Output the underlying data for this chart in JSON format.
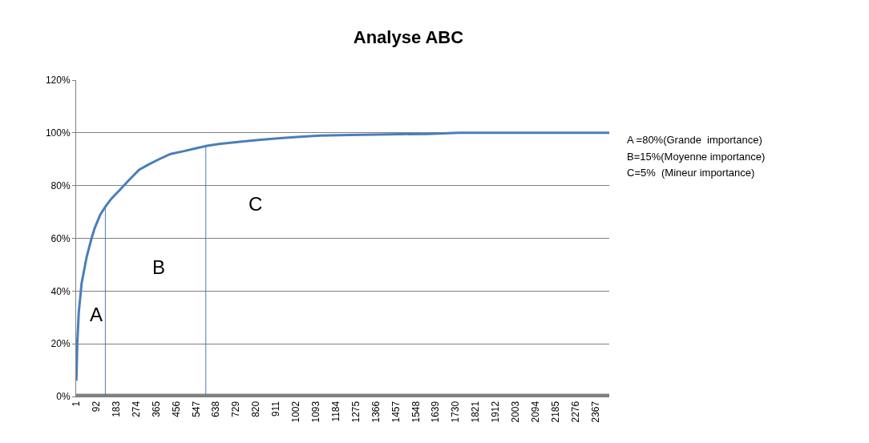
{
  "chart_data": {
    "type": "line",
    "title": "Analyse ABC",
    "series": [
      {
        "color": "#4a7ebb",
        "x": [
          1,
          5,
          12,
          25,
          48,
          70,
          85,
          110,
          133,
          160,
          195,
          240,
          287,
          330,
          378,
          430,
          488,
          540,
          591,
          650,
          745,
          830,
          928,
          1020,
          1111,
          1250,
          1477,
          1600,
          1745,
          2000,
          2200,
          2430
        ],
        "values": [
          6,
          20,
          32,
          43,
          53,
          60,
          64,
          69,
          72,
          75,
          78,
          82,
          86,
          88,
          90,
          92,
          93,
          94,
          95,
          95.8,
          96.6,
          97.3,
          98,
          98.5,
          99,
          99.2,
          99.5,
          99.6,
          100,
          100,
          100,
          100
        ]
      },
      {
        "color": "#4a7ebb",
        "x": [
          133,
          133
        ],
        "values": [
          0,
          72
        ]
      },
      {
        "color": "#4a7ebb",
        "x": [
          591,
          591
        ],
        "values": [
          0,
          95
        ]
      }
    ],
    "xlim": [
      0,
      2430
    ],
    "xticks": [
      1,
      92,
      183,
      274,
      365,
      456,
      547,
      638,
      729,
      820,
      911,
      1002,
      1093,
      1184,
      1275,
      1366,
      1457,
      1548,
      1639,
      1730,
      1821,
      1912,
      2003,
      2094,
      2185,
      2276,
      2367
    ],
    "ylim": [
      0,
      120
    ],
    "yticks": [
      {
        "value": 0,
        "label": "0%"
      },
      {
        "value": 20,
        "label": "20%"
      },
      {
        "value": 40,
        "label": "40%"
      },
      {
        "value": 60,
        "label": "60%"
      },
      {
        "value": 80,
        "label": "80%"
      },
      {
        "value": 100,
        "label": "100%"
      },
      {
        "value": 120,
        "label": "120%"
      }
    ],
    "grid": "y",
    "marker": "none",
    "line_style": "solid",
    "annotations": [
      "A",
      "B",
      "C",
      "A =80%(Grande  importance)",
      "B=15%(Moyenne importance)",
      "C=5%  (Mineur importance)"
    ]
  }
}
